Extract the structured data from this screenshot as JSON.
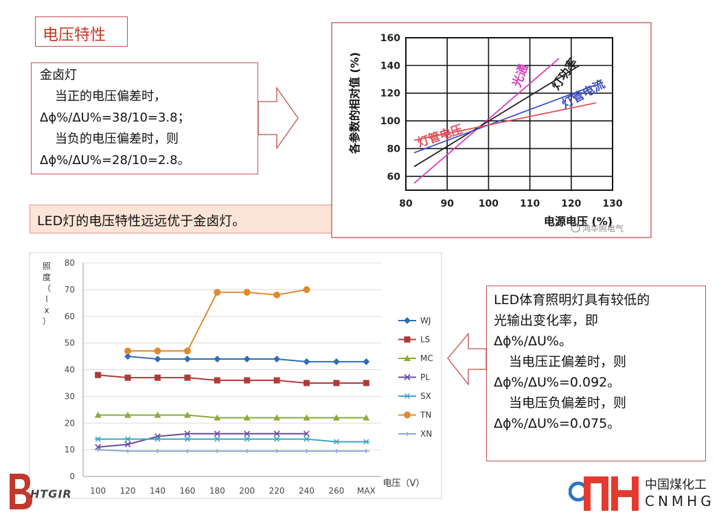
{
  "slide": {
    "title": "电压特性",
    "halogen": {
      "heading": "金卤灯",
      "line1": "当正的电压偏差时，",
      "line2": "Δϕ%/ΔU%=38/10=3.8；",
      "line3": "当负的电压偏差时，则",
      "line4": "Δϕ%/ΔU%=28/10=2.8。"
    },
    "summary": "LED灯的电压特性远远优于金卤灯。",
    "led": {
      "line1": "LED体育照明灯具有较低的",
      "line2": "光输出变化率，即",
      "line3": "Δϕ%/ΔU%。",
      "line4": "当电压正偏差时，则",
      "line5": "Δϕ%/ΔU%=0.092。",
      "line6": "当电压负偏差时，则",
      "line7": "Δϕ%/ΔU%=0.075。"
    },
    "logo_right": {
      "cn": "中国煤化工",
      "en": "CNMHG"
    },
    "logo_left": {
      "text": "HTGIR"
    },
    "watermark": "鸿华照电气",
    "colors": {
      "accent": "#c0504d",
      "summary_bg": "#fce4d6"
    }
  },
  "chart_data": [
    {
      "type": "line",
      "x": [
        82,
        130
      ],
      "xlabel": "电源电压 (%)",
      "ylabel": "各参数的相对值 (%)",
      "xticks": [
        80,
        90,
        100,
        110,
        120,
        130
      ],
      "yticks": [
        60,
        80,
        100,
        120,
        140,
        160
      ],
      "xlim": [
        80,
        130
      ],
      "ylim": [
        50,
        160
      ],
      "grid": true,
      "series": [
        {
          "name": "光通",
          "color": "#d63cc0",
          "points": [
            [
              82,
              55
            ],
            [
              117,
              145
            ]
          ]
        },
        {
          "name": "灯功率",
          "color": "#222222",
          "points": [
            [
              82,
              67
            ],
            [
              122,
              140
            ]
          ]
        },
        {
          "name": "灯管电流",
          "color": "#3a4fc4",
          "points": [
            [
              82,
              77
            ],
            [
              126,
              126
            ]
          ]
        },
        {
          "name": "灯管电压",
          "color": "#e0505a",
          "points": [
            [
              82,
              86
            ],
            [
              126,
              113
            ]
          ]
        }
      ],
      "series_label_color": "#e0505a",
      "annotation_color": "#444444"
    },
    {
      "type": "line",
      "categories": [
        "100",
        "120",
        "140",
        "160",
        "180",
        "200",
        "220",
        "240",
        "260",
        "MAX"
      ],
      "xlabel": "电压（V）",
      "ylabel": "照度（lx）",
      "ylim": [
        0,
        80
      ],
      "yticks": [
        0,
        10,
        20,
        30,
        40,
        50,
        60,
        70,
        80
      ],
      "grid": true,
      "legend": "right",
      "series": [
        {
          "name": "WJ",
          "color": "#2e6db4",
          "marker": "diamond",
          "values": [
            null,
            45,
            44,
            44,
            44,
            44,
            44,
            43,
            43,
            43
          ]
        },
        {
          "name": "LS",
          "color": "#b03a3a",
          "marker": "square",
          "values": [
            38,
            37,
            37,
            37,
            36,
            36,
            36,
            35,
            35,
            35
          ]
        },
        {
          "name": "MC",
          "color": "#8bab3a",
          "marker": "triangle",
          "values": [
            23,
            23,
            23,
            23,
            22,
            22,
            22,
            22,
            22,
            22
          ]
        },
        {
          "name": "PL",
          "color": "#6a4a9c",
          "marker": "x",
          "values": [
            11,
            12,
            15,
            16,
            16,
            16,
            16,
            16,
            null,
            null
          ]
        },
        {
          "name": "SX",
          "color": "#3aa6c4",
          "marker": "star",
          "values": [
            14,
            14,
            14,
            14,
            14,
            14,
            14,
            14,
            13,
            13
          ]
        },
        {
          "name": "TN",
          "color": "#e08a2e",
          "marker": "circle",
          "values": [
            null,
            47,
            47,
            47,
            69,
            69,
            68,
            70,
            null,
            null
          ]
        },
        {
          "name": "XN",
          "color": "#8aa8d8",
          "marker": "plus",
          "values": [
            10,
            9.5,
            9.5,
            9.5,
            9.5,
            9.5,
            9.5,
            9.5,
            9.5,
            9.5
          ]
        }
      ]
    }
  ]
}
